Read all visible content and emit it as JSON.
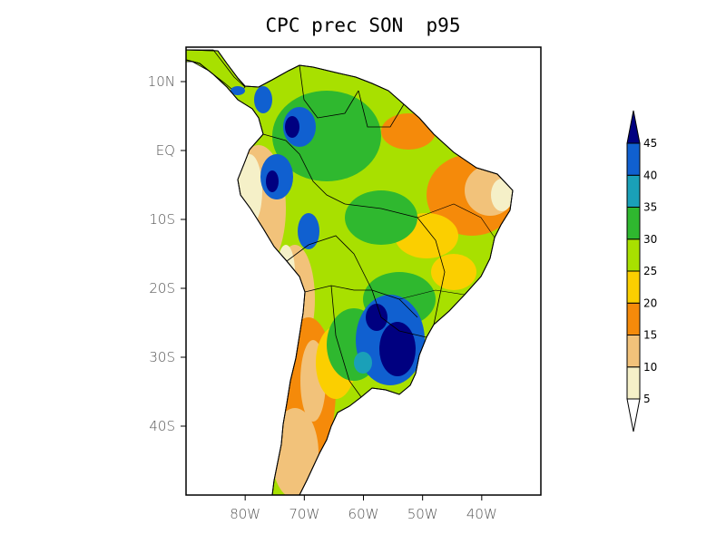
{
  "title": "CPC prec SON  p95",
  "map": {
    "projection": "cylindrical",
    "lon_range": [
      -90,
      -30
    ],
    "lat_range": [
      -50,
      15
    ],
    "lat_ticks": [
      {
        "lat": 10,
        "label": "10N"
      },
      {
        "lat": 0,
        "label": "EQ"
      },
      {
        "lat": -10,
        "label": "10S"
      },
      {
        "lat": -20,
        "label": "20S"
      },
      {
        "lat": -30,
        "label": "30S"
      },
      {
        "lat": -40,
        "label": "40S"
      }
    ],
    "lon_ticks": [
      {
        "lon": -80,
        "label": "80W"
      },
      {
        "lon": -70,
        "label": "70W"
      },
      {
        "lon": -60,
        "label": "60W"
      },
      {
        "lon": -50,
        "label": "50W"
      },
      {
        "lon": -40,
        "label": "40W"
      }
    ]
  },
  "colorbar": {
    "levels": [
      "5",
      "10",
      "15",
      "20",
      "25",
      "30",
      "35",
      "40",
      "45"
    ],
    "colors": [
      "#ffffff",
      "#f5f0c8",
      "#f2c27a",
      "#f58a0a",
      "#fbcf00",
      "#a8e000",
      "#2fb82f",
      "#1aa0b8",
      "#1060d0",
      "#000080"
    ]
  }
}
